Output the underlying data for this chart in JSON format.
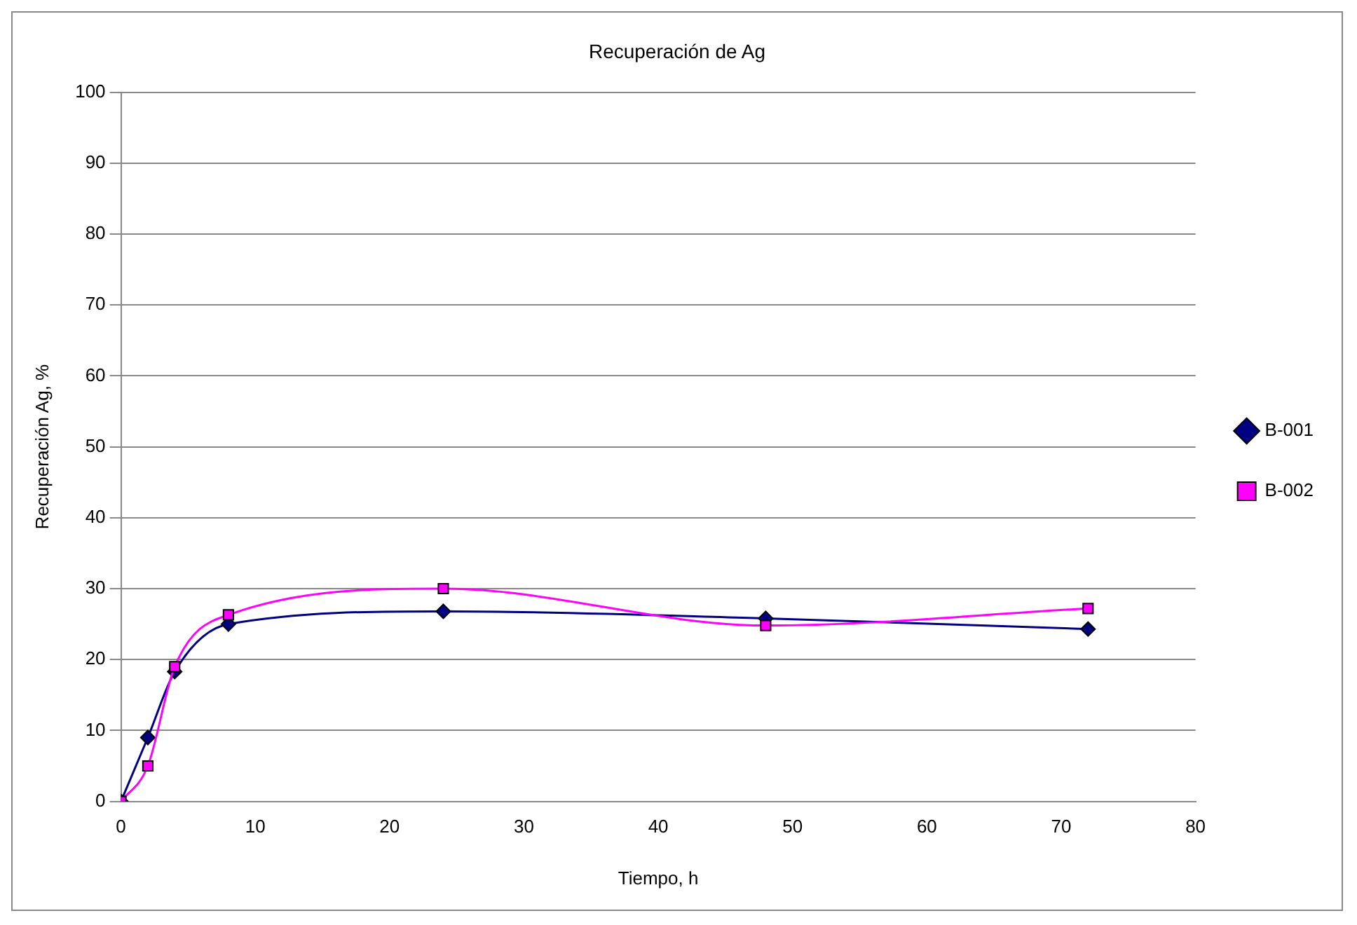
{
  "chart_data": {
    "type": "line",
    "title": "Recuperación de Ag",
    "xlabel": "Tiempo, h",
    "ylabel": "Recuperación Ag, %",
    "xlim": [
      0,
      80
    ],
    "xticks": [
      0,
      10,
      20,
      30,
      40,
      50,
      60,
      70,
      80
    ],
    "ylim": [
      0,
      100
    ],
    "yticks": [
      0,
      10,
      20,
      30,
      40,
      50,
      60,
      70,
      80,
      90,
      100
    ],
    "grid": "y",
    "legend": "right",
    "line_style": "solid",
    "series": [
      {
        "name": "B-001",
        "color": "#000080",
        "marker": "diamond",
        "x": [
          0,
          2,
          4,
          8,
          24,
          48,
          72
        ],
        "values": [
          0,
          9,
          18.3,
          25,
          26.8,
          25.8,
          24.3
        ]
      },
      {
        "name": "B-002",
        "color": "#ff00ff",
        "marker": "square",
        "x": [
          0,
          2,
          4,
          8,
          24,
          48,
          72
        ],
        "values": [
          0,
          5,
          19,
          26.3,
          30,
          24.8,
          27.2
        ]
      }
    ]
  }
}
